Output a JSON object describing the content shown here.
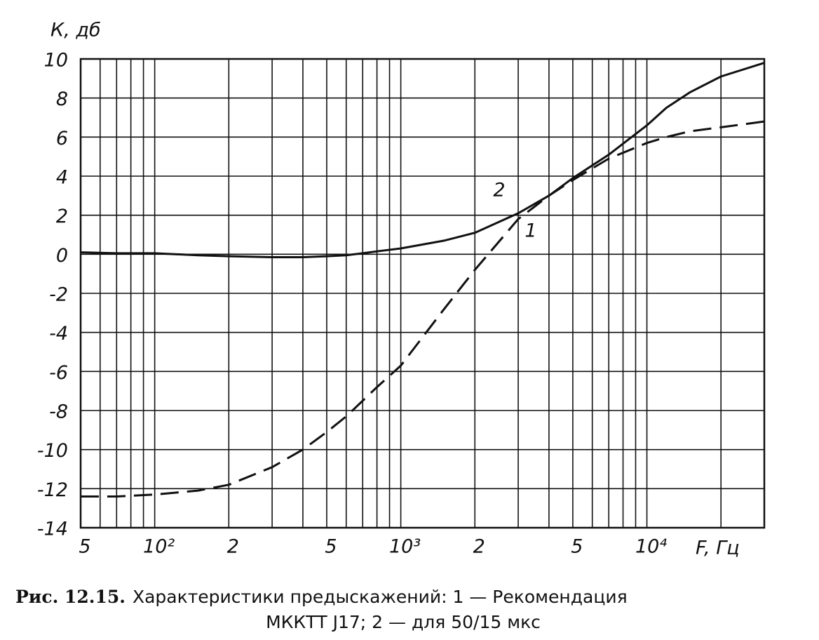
{
  "chart_data": {
    "type": "line",
    "log_x": true,
    "grid": true,
    "ylabel": "К, дб",
    "xlabel": "F,  Гц",
    "caption": {
      "label": "Рис. 12.15.",
      "lines": [
        "Характеристики предыскажений: 1 — Рекомендация",
        "МККТТ J17; 2 — для 50/15 мкс"
      ]
    },
    "xlim": [
      50,
      30000
    ],
    "ylim": [
      -14,
      10
    ],
    "xticks": [
      {
        "value": 50,
        "label": "5"
      },
      {
        "value": 100,
        "label": "10²"
      },
      {
        "value": 200,
        "label": "2"
      },
      {
        "value": 500,
        "label": "5"
      },
      {
        "value": 1000,
        "label": "10³"
      },
      {
        "value": 2000,
        "label": "2"
      },
      {
        "value": 5000,
        "label": "5"
      },
      {
        "value": 10000,
        "label": "10⁴"
      }
    ],
    "xminor": [
      60,
      70,
      80,
      90,
      300,
      400,
      600,
      700,
      800,
      900,
      3000,
      4000,
      6000,
      7000,
      8000,
      9000,
      20000,
      30000
    ],
    "yticks": [
      10,
      8,
      6,
      4,
      2,
      0,
      -2,
      -4,
      -6,
      -8,
      -10,
      -12,
      -14
    ],
    "x": [
      50,
      70,
      100,
      150,
      200,
      300,
      400,
      500,
      600,
      700,
      800,
      1000,
      1500,
      2000,
      3000,
      4000,
      5000,
      7000,
      10000,
      12000,
      15000,
      20000,
      30000
    ],
    "series": [
      {
        "name": "1",
        "color": "#111111",
        "dashed": true,
        "values": [
          -12.4,
          -12.4,
          -12.3,
          -12.1,
          -11.8,
          -10.9,
          -10,
          -9.1,
          -8.3,
          -7.5,
          -6.8,
          -5.7,
          -2.8,
          -0.8,
          1.8,
          3,
          3.8,
          4.9,
          5.7,
          6,
          6.3,
          6.5,
          6.8
        ]
      },
      {
        "name": "2",
        "color": "#111111",
        "dashed": false,
        "values": [
          0.1,
          0.05,
          0.05,
          -0.05,
          -0.1,
          -0.15,
          -0.15,
          -0.1,
          -0.05,
          0.05,
          0.15,
          0.3,
          0.7,
          1.1,
          2.1,
          3,
          3.9,
          5.1,
          6.6,
          7.5,
          8.3,
          9.1,
          9.8
        ]
      }
    ]
  }
}
